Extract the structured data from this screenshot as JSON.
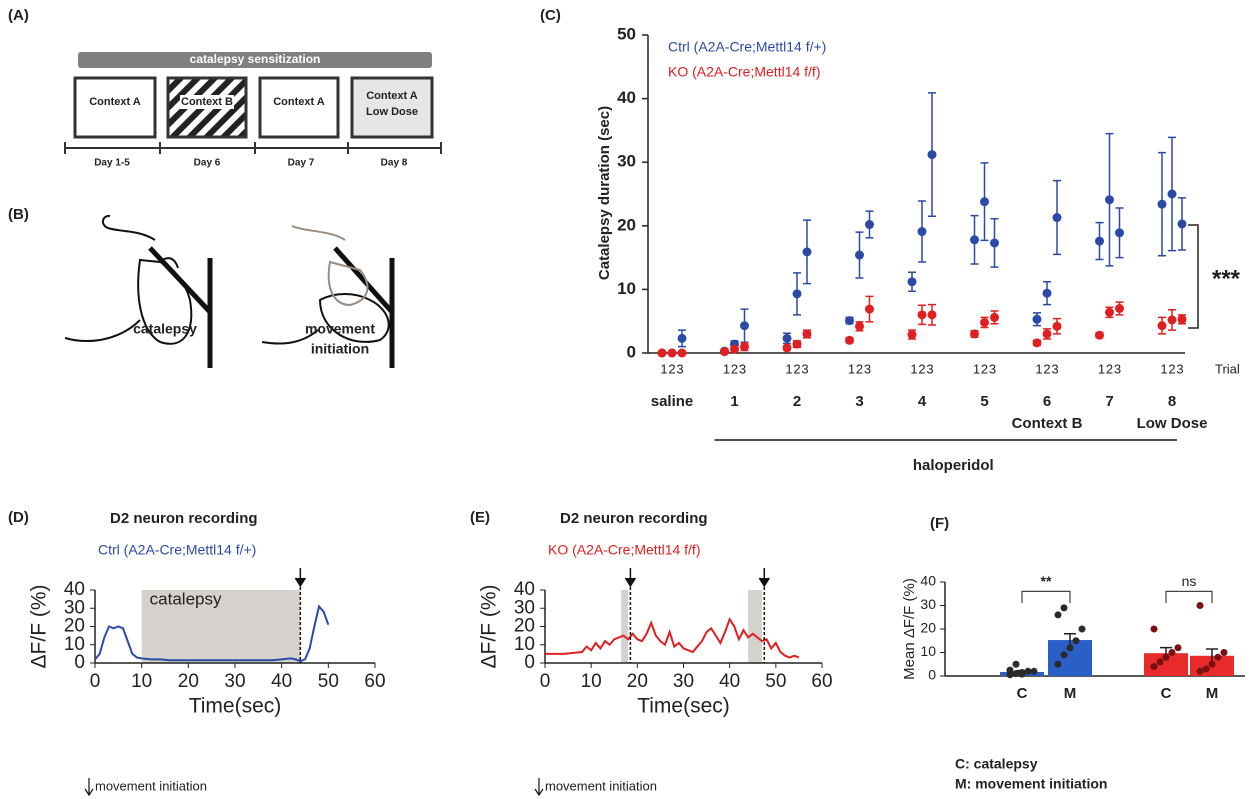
{
  "panel_labels": [
    "(A)",
    "(B)",
    "(C)",
    "(D)",
    "(E)",
    "(F)"
  ],
  "panel_a": {
    "banner": "catalepsy sensitization",
    "boxes": [
      [
        "Context A"
      ],
      [
        "Context B"
      ],
      [
        "Context A"
      ],
      [
        "Context A",
        "Low Dose"
      ]
    ],
    "days": [
      "Day 1-5",
      "Day 6",
      "Day 7",
      "Day 8"
    ]
  },
  "panel_b": {
    "labels": [
      [
        "catalepsy"
      ],
      [
        "movement",
        "initiation"
      ]
    ]
  },
  "chart_data": [
    {
      "type": "dot_error",
      "y_label": "Catalepsy duration (sec)",
      "ylim": [
        0,
        50
      ],
      "yticks": [
        0,
        10,
        20,
        30,
        40,
        50
      ],
      "groups": [
        "saline",
        "1",
        "2",
        "3",
        "4",
        "5",
        "6",
        "7",
        "8"
      ],
      "group_notes": [
        null,
        null,
        null,
        null,
        null,
        null,
        "Context B",
        null,
        "Low Dose"
      ],
      "trials": [
        "1",
        "2",
        "3"
      ],
      "trial_label": "Trial",
      "bracket_label": "haloperidol",
      "significance": "***",
      "series": [
        {
          "name": "Ctrl (A2A-Cre;Mettl14 f/+)",
          "color": "#2b4aa8",
          "values": [
            [
              0,
              0,
              2.3
            ],
            [
              0.3,
              1.4,
              4.3
            ],
            [
              2.3,
              9.3,
              15.9
            ],
            [
              5.1,
              15.4,
              20.2
            ],
            [
              11.2,
              19.1,
              31.2
            ],
            [
              17.8,
              23.8,
              17.3
            ],
            [
              5.3,
              9.4,
              21.3
            ],
            [
              17.6,
              24.1,
              18.9
            ],
            [
              23.4,
              25,
              20.3
            ]
          ],
          "errors": [
            [
              0,
              0,
              1.3
            ],
            [
              0.3,
              0.5,
              2.6
            ],
            [
              0.8,
              3.3,
              5
            ],
            [
              0.5,
              3.6,
              2.1
            ],
            [
              1.5,
              4.8,
              9.7
            ],
            [
              3.8,
              6.1,
              3.8
            ],
            [
              1,
              1.8,
              5.8
            ],
            [
              2.9,
              10.4,
              3.9
            ],
            [
              8.1,
              8.9,
              4.1
            ]
          ]
        },
        {
          "name": "KO (A2A-Cre;Mettl14 f/f)",
          "color": "#e02020",
          "values": [
            [
              0,
              0,
              0
            ],
            [
              0.2,
              0.6,
              1
            ],
            [
              0.8,
              1.4,
              3
            ],
            [
              2,
              4.2,
              6.9
            ],
            [
              2.9,
              6,
              6
            ],
            [
              3,
              4.8,
              5.6
            ],
            [
              1.6,
              3,
              4.2
            ],
            [
              2.8,
              6.4,
              7
            ],
            [
              4.3,
              5.2,
              5.3
            ]
          ],
          "errors": [
            [
              0,
              0,
              0
            ],
            [
              0.2,
              0.4,
              0.6
            ],
            [
              0.3,
              0.5,
              0.6
            ],
            [
              0.4,
              0.7,
              2
            ],
            [
              0.7,
              1.5,
              1.6
            ],
            [
              0.5,
              0.8,
              1
            ],
            [
              0.4,
              0.8,
              1.2
            ],
            [
              0.4,
              0.8,
              1
            ],
            [
              1.3,
              1.6,
              0.7
            ]
          ]
        }
      ]
    },
    {
      "type": "line",
      "title": "D2 neuron recording",
      "x_label": "Time(sec)",
      "y_label": "ΔF/F (%)",
      "xlim": [
        0,
        60
      ],
      "xticks": [
        0,
        10,
        20,
        30,
        40,
        50,
        60
      ],
      "ylim": [
        0,
        40
      ],
      "yticks": [
        0,
        10,
        20,
        30,
        40
      ],
      "shaded": [
        [
          10,
          44
        ]
      ],
      "shade_label": "catalepsy",
      "events": [
        44
      ],
      "note": "movement initiation",
      "x": [
        0,
        1,
        2,
        3,
        4,
        5,
        6,
        7,
        8,
        9,
        10,
        12,
        14,
        16,
        18,
        20,
        22,
        24,
        26,
        28,
        30,
        32,
        34,
        36,
        38,
        40,
        42,
        43,
        44,
        45,
        46,
        47,
        48,
        49,
        50
      ],
      "series": [
        {
          "name": "Ctrl (A2A-Cre;Mettl14 f/+)",
          "color": "#2b4aa8",
          "values": [
            2,
            5,
            14,
            20,
            19,
            20,
            19,
            12,
            5,
            3,
            2.5,
            2,
            2,
            1.5,
            1.5,
            1.5,
            1.5,
            1.5,
            1.5,
            1.5,
            1.5,
            1.5,
            1.5,
            1.5,
            1.5,
            2,
            2.5,
            2,
            1,
            2,
            8,
            20,
            31,
            28,
            21
          ]
        }
      ]
    },
    {
      "type": "line",
      "title": "D2 neuron recording",
      "x_label": "Time(sec)",
      "y_label": "ΔF/F (%)",
      "xlim": [
        0,
        60
      ],
      "xticks": [
        0,
        10,
        20,
        30,
        40,
        50,
        60
      ],
      "ylim": [
        0,
        40
      ],
      "yticks": [
        0,
        10,
        20,
        30,
        40
      ],
      "shaded": [
        [
          16.5,
          18
        ],
        [
          44,
          47
        ]
      ],
      "events": [
        18.5,
        47.5
      ],
      "note": "movement initiation",
      "x": [
        0,
        2,
        4,
        6,
        8,
        9,
        10,
        11,
        12,
        13,
        14,
        15,
        16,
        17,
        18,
        19,
        20,
        21,
        22,
        23,
        24,
        25,
        26,
        27,
        28,
        29,
        30,
        31,
        32,
        33,
        34,
        35,
        36,
        37,
        38,
        39,
        40,
        41,
        42,
        43,
        44,
        45,
        46,
        47,
        48,
        49,
        50,
        51,
        52,
        53,
        54,
        55
      ],
      "series": [
        {
          "name": "KO (A2A-Cre;Mettl14 f/f)",
          "color": "#e02020",
          "values": [
            5,
            5,
            5,
            5.5,
            6,
            9,
            7,
            11,
            8,
            12,
            10,
            13,
            14,
            15,
            13,
            16,
            13,
            12,
            16,
            22,
            15,
            12,
            10,
            17,
            9,
            11,
            8,
            7,
            6,
            9,
            12,
            17,
            19,
            15,
            11,
            17,
            24,
            20,
            13,
            18,
            14,
            16,
            14,
            12,
            13,
            8,
            11,
            6,
            4,
            3,
            4,
            3
          ]
        }
      ]
    },
    {
      "type": "bar",
      "y_label": "Mean ΔF/F (%)",
      "ylim": [
        0,
        40
      ],
      "yticks": [
        0,
        10,
        20,
        30,
        40
      ],
      "categories": [
        "C",
        "M",
        "C",
        "M"
      ],
      "values": [
        1.7,
        15.3,
        9.7,
        8.6
      ],
      "errors": [
        0.6,
        2.7,
        2.4,
        2.9
      ],
      "colors": [
        "#2b5fc8",
        "#2b5fc8",
        "#e82a2a",
        "#e82a2a"
      ],
      "point_colors": [
        "#2a2a2a",
        "#2a2a2a",
        "#7a1010",
        "#7a1010"
      ],
      "points": [
        [
          0.5,
          1,
          1.5,
          2,
          2,
          2.5,
          5,
          0.8
        ],
        [
          5,
          9,
          12,
          15,
          20,
          26,
          29
        ],
        [
          4,
          6,
          8,
          10,
          12,
          20
        ],
        [
          2,
          3,
          5,
          8,
          10,
          30
        ]
      ],
      "significance": [
        "**",
        "ns"
      ],
      "footnotes": [
        "C: catalepsy",
        "M: movement initiation"
      ]
    }
  ]
}
